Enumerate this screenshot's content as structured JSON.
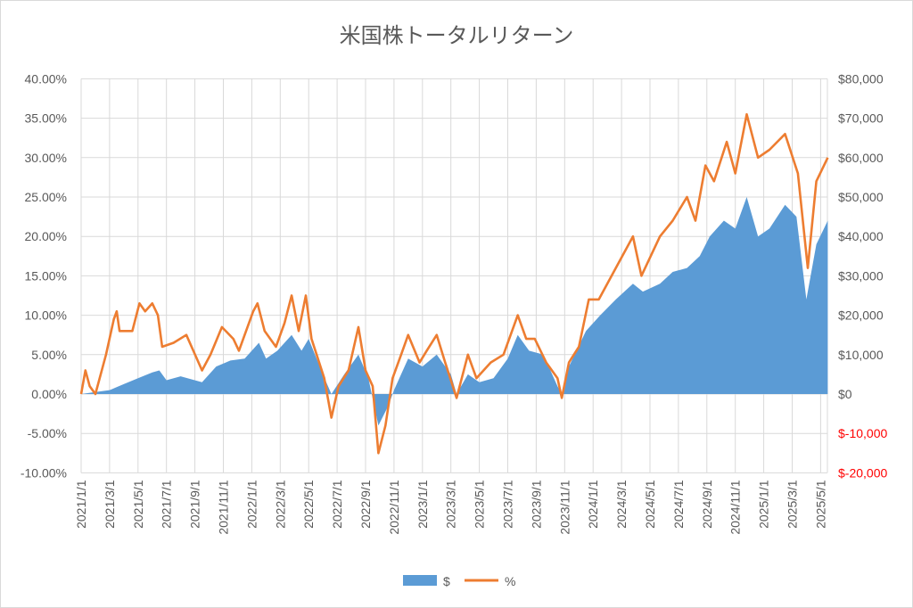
{
  "chart_data": {
    "type": "area+line",
    "title": "米国株トータルリターン",
    "x_start": "2021/1/1",
    "x_unit": "months since 2021/1/1",
    "x_tick_labels": [
      "2021/1/1",
      "2021/3/1",
      "2021/5/1",
      "2021/7/1",
      "2021/9/1",
      "2021/11/1",
      "2022/1/1",
      "2022/3/1",
      "2022/5/1",
      "2022/7/1",
      "2022/9/1",
      "2022/11/1",
      "2023/1/1",
      "2023/3/1",
      "2023/5/1",
      "2023/7/1",
      "2023/9/1",
      "2023/11/1",
      "2024/1/1",
      "2024/3/1",
      "2024/5/1",
      "2024/7/1",
      "2024/9/1",
      "2024/11/1",
      "2025/1/1",
      "2025/3/1",
      "2025/5/1"
    ],
    "y_left": {
      "ticks": [
        "40.00%",
        "35.00%",
        "30.00%",
        "25.00%",
        "20.00%",
        "15.00%",
        "10.00%",
        "5.00%",
        "0.00%",
        "-5.00%",
        "-10.00%"
      ],
      "range": [
        -10,
        40
      ]
    },
    "y_right": {
      "ticks": [
        "$80,000",
        "$70,000",
        "$60,000",
        "$50,000",
        "$40,000",
        "$30,000",
        "$20,000",
        "$10,000",
        "$0",
        "$-10,000",
        "$-20,000"
      ],
      "range": [
        -20000,
        80000
      ]
    },
    "grid": true,
    "legend": {
      "position": "bottom",
      "entries": [
        "$",
        "%"
      ]
    },
    "series": [
      {
        "name": "$",
        "type": "area",
        "axis": "right",
        "color": "#5b9bd5",
        "points": [
          [
            0,
            0
          ],
          [
            1,
            500
          ],
          [
            2,
            1000
          ],
          [
            3,
            2500
          ],
          [
            4,
            4000
          ],
          [
            5,
            5500
          ],
          [
            5.5,
            6000
          ],
          [
            6,
            3500
          ],
          [
            7,
            4500
          ],
          [
            8.5,
            3000
          ],
          [
            9.5,
            7000
          ],
          [
            10.5,
            8500
          ],
          [
            11.5,
            9000
          ],
          [
            12.5,
            13000
          ],
          [
            13,
            9000
          ],
          [
            13.8,
            11000
          ],
          [
            14.8,
            15000
          ],
          [
            15.5,
            11000
          ],
          [
            16,
            14000
          ],
          [
            17,
            5000
          ],
          [
            17.6,
            0
          ],
          [
            18.5,
            5000
          ],
          [
            19.5,
            10000
          ],
          [
            20.2,
            4000
          ],
          [
            20.9,
            -8000
          ],
          [
            21.6,
            -3000
          ],
          [
            22,
            1000
          ],
          [
            23,
            9000
          ],
          [
            24,
            7000
          ],
          [
            25,
            10000
          ],
          [
            26,
            5000
          ],
          [
            26.4,
            0
          ],
          [
            27.2,
            5000
          ],
          [
            28,
            3000
          ],
          [
            29,
            4000
          ],
          [
            30,
            9000
          ],
          [
            30.7,
            15000
          ],
          [
            31.5,
            11000
          ],
          [
            32.5,
            10000
          ],
          [
            33.5,
            2000
          ],
          [
            33.8,
            0
          ],
          [
            34.3,
            7000
          ],
          [
            35.5,
            16000
          ],
          [
            36.5,
            20000
          ],
          [
            37.6,
            24000
          ],
          [
            38.8,
            28000
          ],
          [
            39.5,
            26000
          ],
          [
            40.7,
            28000
          ],
          [
            41.6,
            31000
          ],
          [
            42.6,
            32000
          ],
          [
            43.5,
            35000
          ],
          [
            44.2,
            40000
          ],
          [
            45.2,
            44000
          ],
          [
            46,
            42000
          ],
          [
            46.8,
            50000
          ],
          [
            47.6,
            40000
          ],
          [
            48.4,
            42000
          ],
          [
            49.5,
            48000
          ],
          [
            50.3,
            45000
          ],
          [
            51,
            24000
          ],
          [
            51.7,
            38000
          ],
          [
            52.5,
            44000
          ]
        ]
      },
      {
        "name": "%",
        "type": "line",
        "axis": "left",
        "color": "#ed7d31",
        "points": [
          [
            0,
            0
          ],
          [
            0.3,
            3
          ],
          [
            0.6,
            1
          ],
          [
            1,
            0
          ],
          [
            1.75,
            5
          ],
          [
            2.3,
            9.5
          ],
          [
            2.5,
            10.5
          ],
          [
            2.7,
            8
          ],
          [
            3.6,
            8
          ],
          [
            4.1,
            11.5
          ],
          [
            4.5,
            10.5
          ],
          [
            5,
            11.5
          ],
          [
            5.4,
            10
          ],
          [
            5.7,
            6
          ],
          [
            6.5,
            6.5
          ],
          [
            7.4,
            7.5
          ],
          [
            8.5,
            3
          ],
          [
            9.1,
            5
          ],
          [
            9.9,
            8.5
          ],
          [
            10.7,
            7
          ],
          [
            11.1,
            5.5
          ],
          [
            12.1,
            10.5
          ],
          [
            12.4,
            11.5
          ],
          [
            12.9,
            8
          ],
          [
            13.7,
            6
          ],
          [
            14.3,
            9
          ],
          [
            14.8,
            12.5
          ],
          [
            15.3,
            8
          ],
          [
            15.8,
            12.5
          ],
          [
            16.2,
            7
          ],
          [
            17.1,
            2
          ],
          [
            17.6,
            -3
          ],
          [
            18.1,
            1
          ],
          [
            18.8,
            3
          ],
          [
            19.5,
            8.5
          ],
          [
            20,
            3
          ],
          [
            20.5,
            1
          ],
          [
            20.9,
            -7.5
          ],
          [
            21.4,
            -4
          ],
          [
            21.9,
            2
          ],
          [
            22.5,
            5
          ],
          [
            23,
            7.5
          ],
          [
            23.8,
            4
          ],
          [
            24.3,
            5.5
          ],
          [
            25,
            7.5
          ],
          [
            25.6,
            4
          ],
          [
            26.4,
            -0.5
          ],
          [
            27.2,
            5
          ],
          [
            27.8,
            2
          ],
          [
            28.8,
            4
          ],
          [
            29.7,
            5
          ],
          [
            30.7,
            10
          ],
          [
            31.3,
            7
          ],
          [
            31.9,
            7
          ],
          [
            32.7,
            4
          ],
          [
            33.5,
            2
          ],
          [
            33.8,
            -0.5
          ],
          [
            34.3,
            4
          ],
          [
            35,
            6
          ],
          [
            35.7,
            12
          ],
          [
            36.4,
            12
          ],
          [
            37.6,
            16
          ],
          [
            38.8,
            20
          ],
          [
            39.4,
            15
          ],
          [
            40.7,
            20
          ],
          [
            41.6,
            22
          ],
          [
            42.6,
            25
          ],
          [
            43.2,
            22
          ],
          [
            43.9,
            29
          ],
          [
            44.5,
            27
          ],
          [
            45.4,
            32
          ],
          [
            46,
            28
          ],
          [
            46.8,
            35.5
          ],
          [
            47.6,
            30
          ],
          [
            48.4,
            31
          ],
          [
            49.5,
            33
          ],
          [
            50.4,
            28
          ],
          [
            51.1,
            16
          ],
          [
            51.7,
            27
          ],
          [
            52.5,
            30
          ]
        ]
      }
    ]
  }
}
